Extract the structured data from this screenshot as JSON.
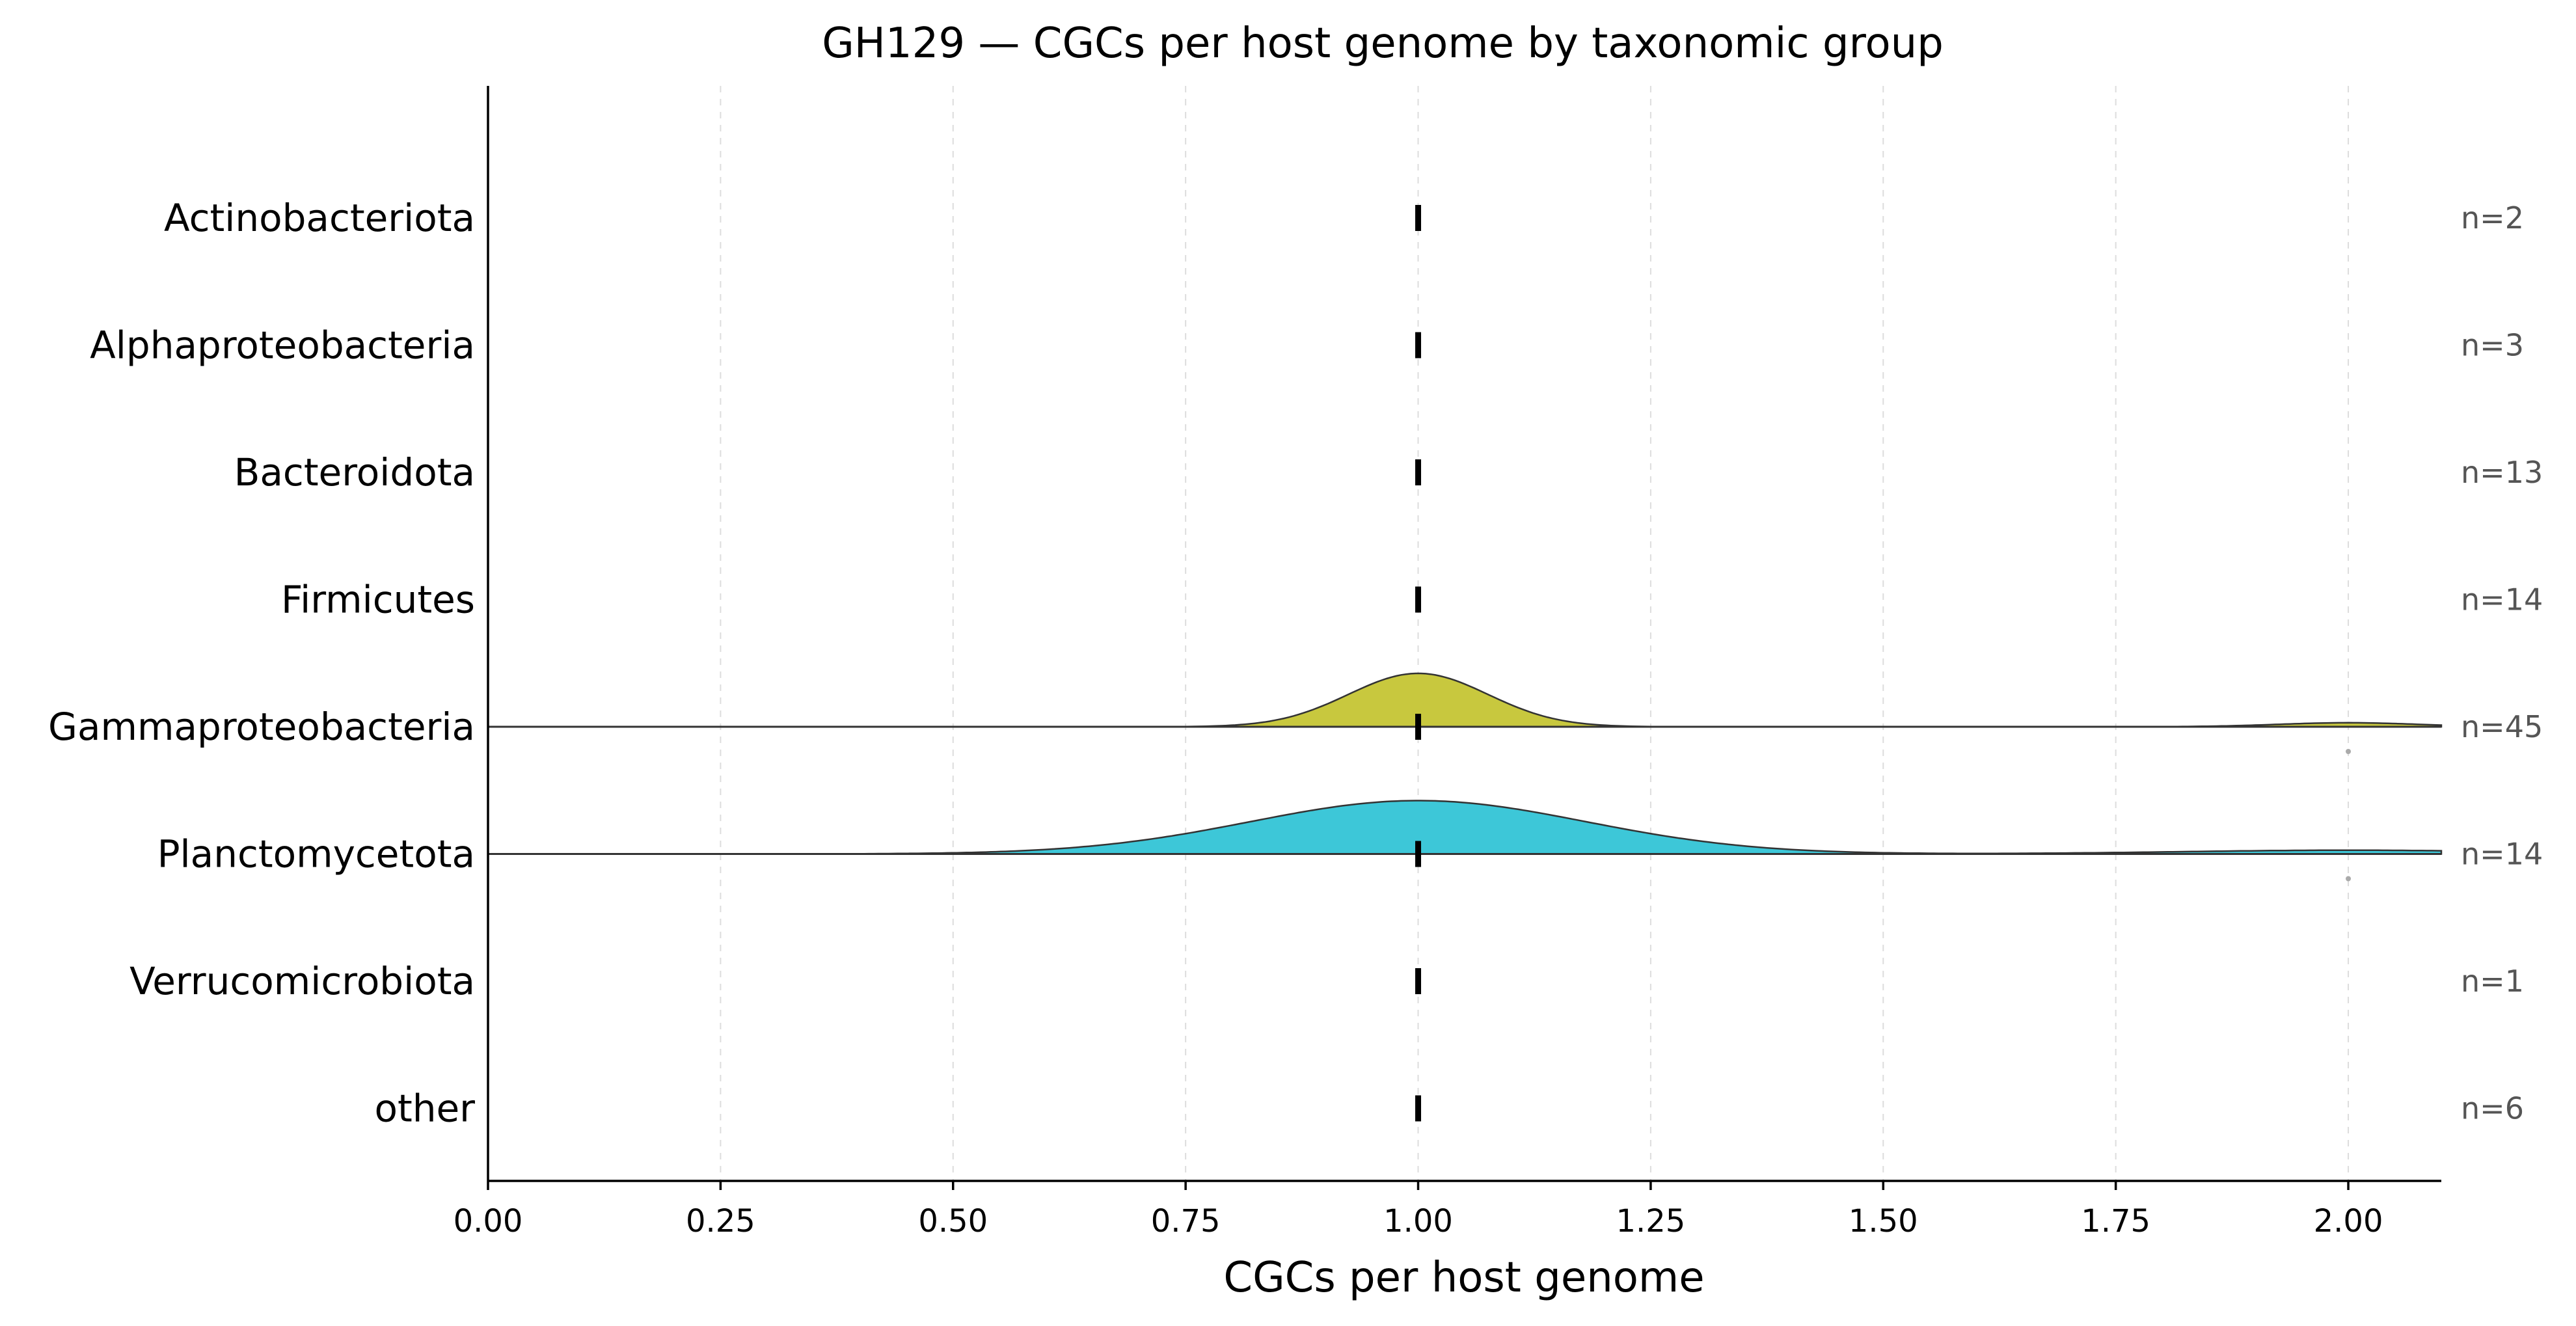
{
  "chart_data": {
    "type": "ridgeline",
    "title": "GH129 — CGCs per host genome by taxonomic group",
    "xlabel": "CGCs per host genome",
    "xlim": [
      0,
      2.1
    ],
    "xticks": [
      0.0,
      0.25,
      0.5,
      0.75,
      1.0,
      1.25,
      1.5,
      1.75,
      2.0
    ],
    "xtick_labels": [
      "0.00",
      "0.25",
      "0.50",
      "0.75",
      "1.00",
      "1.25",
      "1.50",
      "1.75",
      "2.00"
    ],
    "grid": "vertical dashed",
    "groups": [
      {
        "name": "Actinobacteriota",
        "n_label": "n=2",
        "n": 2,
        "median": 1.0,
        "density": null,
        "color": null,
        "outliers": []
      },
      {
        "name": "Alphaproteobacteria",
        "n_label": "n=3",
        "n": 3,
        "median": 1.0,
        "density": null,
        "color": null,
        "outliers": []
      },
      {
        "name": "Bacteroidota",
        "n_label": "n=13",
        "n": 13,
        "median": 1.0,
        "density": null,
        "color": null,
        "outliers": []
      },
      {
        "name": "Firmicutes",
        "n_label": "n=14",
        "n": 14,
        "median": 1.0,
        "density": null,
        "color": null,
        "outliers": []
      },
      {
        "name": "Gammaproteobacteria",
        "n_label": "n=45",
        "n": 45,
        "median": 1.0,
        "color": "#c8c83e",
        "density": {
          "components": [
            {
              "mu": 1.0,
              "sigma": 0.075,
              "w": 1.0
            },
            {
              "mu": 2.0,
              "sigma": 0.075,
              "w": 0.075
            }
          ]
        },
        "outliers": [
          2.0
        ]
      },
      {
        "name": "Planctomycetota",
        "n_label": "n=14",
        "n": 14,
        "median": 1.0,
        "color": "#3dc7d8",
        "density": {
          "components": [
            {
              "mu": 1.0,
              "sigma": 0.18,
              "w": 1.0
            },
            {
              "mu": 2.0,
              "sigma": 0.18,
              "w": 0.07
            }
          ]
        },
        "outliers": [
          2.0
        ]
      },
      {
        "name": "Verrucomicrobiota",
        "n_label": "n=1",
        "n": 1,
        "median": 1.0,
        "density": null,
        "color": null,
        "outliers": []
      },
      {
        "name": "other",
        "n_label": "n=6",
        "n": 6,
        "median": 1.0,
        "density": null,
        "color": null,
        "outliers": []
      }
    ]
  }
}
